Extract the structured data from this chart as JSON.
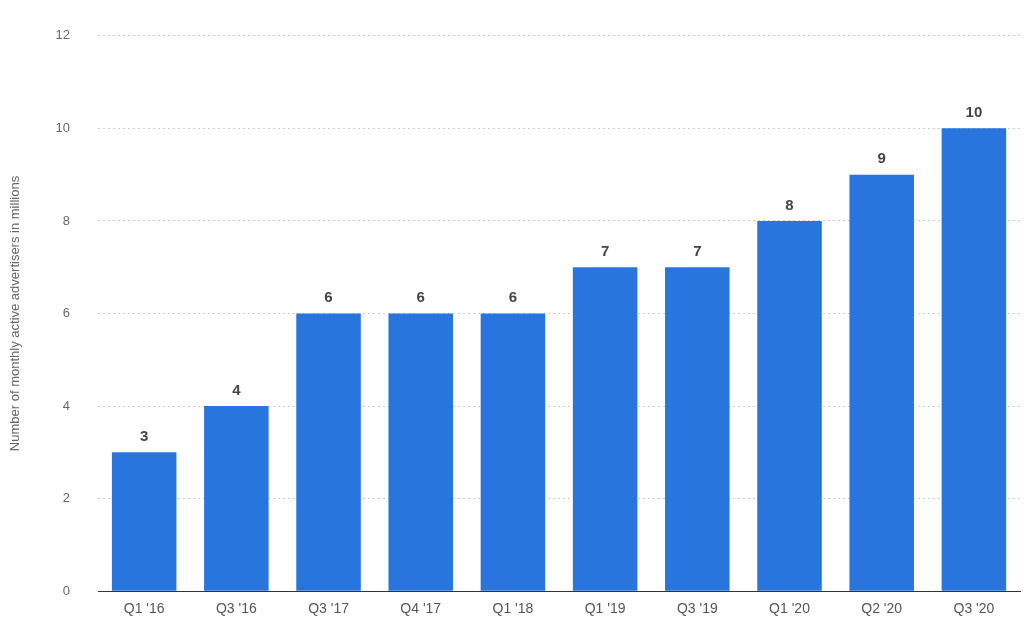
{
  "chart_data": {
    "type": "bar",
    "ylabel": "Number of monthly active advertisers in millions",
    "categories": [
      "Q1 '16",
      "Q3 '16",
      "Q3 '17",
      "Q4 '17",
      "Q1 '18",
      "Q1 '19",
      "Q3 '19",
      "Q1 '20",
      "Q2 '20",
      "Q3 '20"
    ],
    "values": [
      3,
      4,
      6,
      6,
      6,
      7,
      7,
      8,
      9,
      10
    ],
    "color": "#2876dd",
    "ylim": [
      0,
      12
    ],
    "yticks": [
      0,
      2,
      4,
      6,
      8,
      10,
      12
    ],
    "grid": "y",
    "data_labels": true,
    "legend": false
  }
}
